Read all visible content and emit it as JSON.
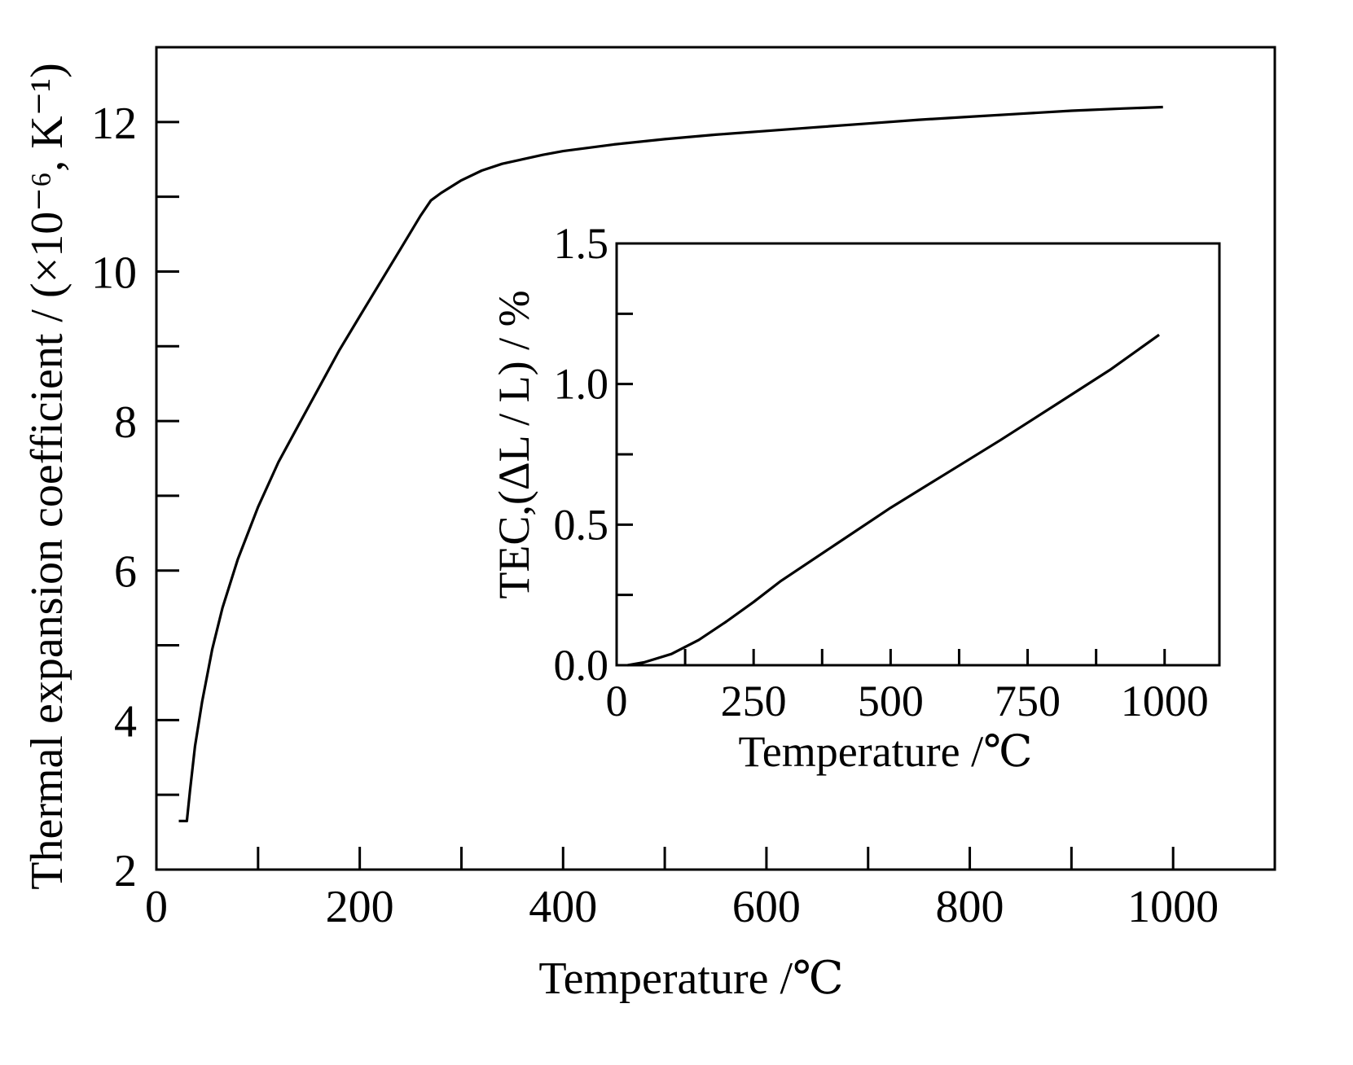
{
  "chart_data": [
    {
      "type": "line",
      "xlabel": "Temperature /℃",
      "ylabel": "Thermal expansion coefficient / (×10⁻⁶, K⁻¹)",
      "xlim": [
        0,
        1100
      ],
      "ylim": [
        2,
        13
      ],
      "x_ticks": [
        0,
        200,
        400,
        600,
        800,
        1000
      ],
      "x_minor_ticks": [
        100,
        300,
        500,
        700,
        900
      ],
      "y_ticks": [
        2,
        4,
        6,
        8,
        10,
        12
      ],
      "y_minor_ticks": [
        3,
        5,
        7,
        9,
        11
      ],
      "grid": false,
      "series": [
        {
          "x": [
            22,
            30,
            33,
            38,
            45,
            55,
            65,
            80,
            100,
            120,
            140,
            160,
            180,
            200,
            220,
            240,
            260,
            270,
            280,
            300,
            320,
            340,
            360,
            380,
            400,
            450,
            500,
            550,
            600,
            650,
            700,
            750,
            800,
            850,
            900,
            950,
            990
          ],
          "y": [
            2.65,
            2.65,
            3.05,
            3.65,
            4.25,
            4.95,
            5.5,
            6.15,
            6.85,
            7.45,
            7.95,
            8.45,
            8.95,
            9.4,
            9.85,
            10.3,
            10.75,
            10.95,
            11.05,
            11.22,
            11.35,
            11.44,
            11.5,
            11.56,
            11.61,
            11.7,
            11.77,
            11.83,
            11.88,
            11.93,
            11.98,
            12.03,
            12.07,
            12.11,
            12.15,
            12.18,
            12.2
          ]
        }
      ]
    },
    {
      "type": "line",
      "xlabel": "Temperature /℃",
      "ylabel": "TEC,(ΔL / L) / %",
      "xlim": [
        0,
        1100
      ],
      "ylim": [
        0,
        1.5
      ],
      "x_ticks": [
        0,
        250,
        500,
        750,
        1000
      ],
      "x_minor_ticks": [
        125,
        375,
        625,
        875
      ],
      "y_ticks": [
        0.0,
        0.5,
        1.0,
        1.5
      ],
      "y_tick_labels": [
        "0.0",
        "0.5",
        "1.0",
        "1.5"
      ],
      "y_minor_ticks": [
        0.25,
        0.75,
        1.25
      ],
      "grid": false,
      "series": [
        {
          "x": [
            20,
            50,
            100,
            150,
            200,
            250,
            300,
            400,
            500,
            600,
            700,
            800,
            900,
            990
          ],
          "y": [
            0.0,
            0.01,
            0.04,
            0.09,
            0.155,
            0.225,
            0.3,
            0.43,
            0.56,
            0.68,
            0.8,
            0.925,
            1.05,
            1.175
          ]
        }
      ]
    }
  ]
}
